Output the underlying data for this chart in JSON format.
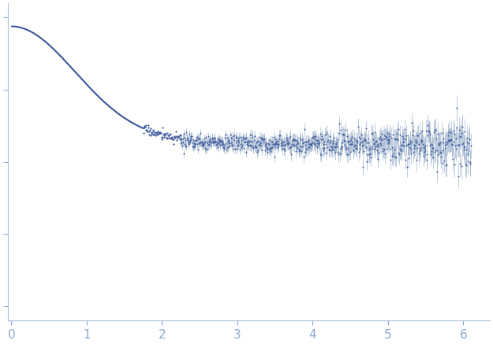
{
  "title": "",
  "xlabel": "",
  "ylabel": "",
  "xlim": [
    -0.05,
    6.35
  ],
  "ylim": [
    -0.05,
    1.05
  ],
  "x_ticks": [
    0,
    1,
    2,
    3,
    4,
    5,
    6
  ],
  "dot_color": "#3a5899",
  "line_color": "#3a5899",
  "error_color": "#9ab0cc",
  "tick_color": "#8aa8d0",
  "background_color": "#ffffff",
  "spine_color": "#aac0dc",
  "Rg": 1.45,
  "I0": 0.97,
  "flat_level": 0.57,
  "transition_q": 2.2,
  "noise_seed": 17
}
